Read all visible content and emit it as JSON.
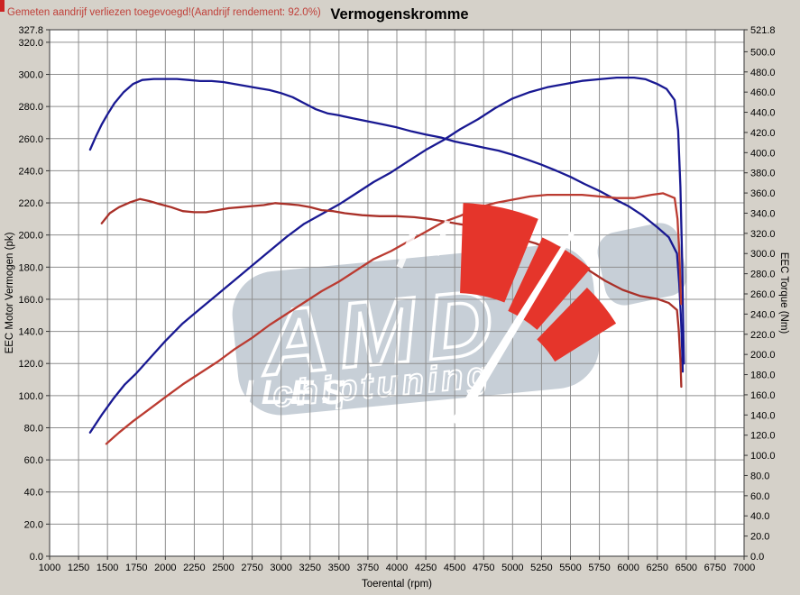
{
  "header": {
    "note": "Gemeten aandrijf verliezen toegevoegd!(Aandrijf rendement: 92.0%)",
    "title": "Vermogenskromme"
  },
  "watermark": {
    "line1": "AMD",
    "line2": "chiptuning",
    "line3": "FILES"
  },
  "colors": {
    "background": "#d5d1c9",
    "plot_background": "#ffffff",
    "grid": "#8f8f8f",
    "border": "#555555",
    "note_red": "#c0403a",
    "title_black": "#000000",
    "tuned_blue": "#191992",
    "original_red": "#b43430",
    "watermark_gray": "#c7cfd7",
    "watermark_red": "#e5352b"
  },
  "chart_data": {
    "type": "line",
    "title": "Vermogenskromme",
    "xlabel": "Toerental (rpm)",
    "ylabel_left": "EEC Motor Vermogen (pk)",
    "ylabel_right": "EEC Torque (Nm)",
    "xlim": [
      1000,
      7000
    ],
    "ylim_left": [
      0,
      327.8
    ],
    "ylim_right": [
      0,
      521.8
    ],
    "grid": true,
    "legend": "none",
    "x_ticks": [
      "1000",
      "1250",
      "1500",
      "1750",
      "2000",
      "2250",
      "2500",
      "2750",
      "3000",
      "3250",
      "3500",
      "3750",
      "4000",
      "4250",
      "4500",
      "4750",
      "5000",
      "5250",
      "5500",
      "5750",
      "6000",
      "6250",
      "6500",
      "6750",
      "7000"
    ],
    "y_ticks_left": [
      "0.0",
      "20.0",
      "40.0",
      "60.0",
      "80.0",
      "100.0",
      "120.0",
      "140.0",
      "160.0",
      "180.0",
      "200.0",
      "220.0",
      "240.0",
      "260.0",
      "280.0",
      "300.0",
      "320.0",
      "327.8"
    ],
    "y_ticks_right": [
      "0.0",
      "20.0",
      "40.0",
      "60.0",
      "80.0",
      "100.0",
      "120.0",
      "140.0",
      "160.0",
      "180.0",
      "200.0",
      "220.0",
      "240.0",
      "260.0",
      "280.0",
      "300.0",
      "320.0",
      "340.0",
      "360.0",
      "380.0",
      "400.0",
      "420.0",
      "440.0",
      "460.0",
      "480.0",
      "500.0",
      "521.8"
    ],
    "series": [
      {
        "name": "tuned_power_pk",
        "axis": "left",
        "color": "#191992",
        "peak": 298,
        "points": [
          [
            1350,
            77
          ],
          [
            1450,
            88
          ],
          [
            1550,
            98
          ],
          [
            1650,
            107
          ],
          [
            1750,
            114
          ],
          [
            1850,
            122
          ],
          [
            2000,
            134
          ],
          [
            2150,
            145
          ],
          [
            2300,
            154
          ],
          [
            2450,
            163
          ],
          [
            2600,
            172
          ],
          [
            2750,
            181
          ],
          [
            2900,
            190
          ],
          [
            3050,
            199
          ],
          [
            3200,
            207
          ],
          [
            3350,
            213
          ],
          [
            3500,
            219
          ],
          [
            3650,
            226
          ],
          [
            3800,
            233
          ],
          [
            3950,
            239
          ],
          [
            4100,
            246
          ],
          [
            4250,
            253
          ],
          [
            4400,
            259
          ],
          [
            4550,
            266
          ],
          [
            4700,
            272
          ],
          [
            4850,
            279
          ],
          [
            5000,
            285
          ],
          [
            5150,
            289
          ],
          [
            5300,
            292
          ],
          [
            5450,
            294
          ],
          [
            5600,
            296
          ],
          [
            5750,
            297
          ],
          [
            5900,
            298
          ],
          [
            6050,
            298
          ],
          [
            6150,
            297
          ],
          [
            6250,
            294
          ],
          [
            6330,
            291
          ],
          [
            6400,
            284
          ],
          [
            6430,
            265
          ],
          [
            6450,
            230
          ],
          [
            6465,
            185
          ],
          [
            6475,
            142
          ],
          [
            6480,
            120
          ]
        ]
      },
      {
        "name": "tuned_torque_nm",
        "axis": "right",
        "color": "#191992",
        "peak": 473,
        "points": [
          [
            1350,
            403
          ],
          [
            1400,
            416
          ],
          [
            1450,
            428
          ],
          [
            1500,
            438
          ],
          [
            1560,
            449
          ],
          [
            1640,
            460
          ],
          [
            1720,
            468
          ],
          [
            1800,
            472
          ],
          [
            1900,
            473
          ],
          [
            2000,
            473
          ],
          [
            2100,
            473
          ],
          [
            2200,
            472
          ],
          [
            2300,
            471
          ],
          [
            2400,
            471
          ],
          [
            2500,
            470
          ],
          [
            2600,
            468
          ],
          [
            2700,
            466
          ],
          [
            2800,
            464
          ],
          [
            2900,
            462
          ],
          [
            3000,
            459
          ],
          [
            3100,
            455
          ],
          [
            3200,
            449
          ],
          [
            3300,
            443
          ],
          [
            3400,
            439
          ],
          [
            3500,
            437
          ],
          [
            3620,
            434
          ],
          [
            3750,
            431
          ],
          [
            3880,
            428
          ],
          [
            4000,
            425
          ],
          [
            4130,
            421
          ],
          [
            4250,
            418
          ],
          [
            4380,
            415
          ],
          [
            4500,
            411
          ],
          [
            4630,
            408
          ],
          [
            4750,
            405
          ],
          [
            4880,
            402
          ],
          [
            5000,
            398
          ],
          [
            5130,
            393
          ],
          [
            5250,
            388
          ],
          [
            5380,
            382
          ],
          [
            5500,
            376
          ],
          [
            5620,
            369
          ],
          [
            5750,
            362
          ],
          [
            5880,
            354
          ],
          [
            6000,
            347
          ],
          [
            6120,
            338
          ],
          [
            6250,
            326
          ],
          [
            6350,
            316
          ],
          [
            6420,
            300
          ],
          [
            6440,
            270
          ],
          [
            6455,
            235
          ],
          [
            6465,
            205
          ],
          [
            6470,
            183
          ]
        ]
      },
      {
        "name": "original_power_pk",
        "axis": "left",
        "color": "#bb3b31",
        "peak": 226,
        "points": [
          [
            1490,
            70
          ],
          [
            1600,
            77
          ],
          [
            1720,
            84
          ],
          [
            1850,
            91
          ],
          [
            2000,
            99
          ],
          [
            2150,
            107
          ],
          [
            2300,
            114
          ],
          [
            2450,
            121
          ],
          [
            2600,
            129
          ],
          [
            2750,
            136
          ],
          [
            2900,
            144
          ],
          [
            3050,
            151
          ],
          [
            3200,
            158
          ],
          [
            3350,
            165
          ],
          [
            3500,
            171
          ],
          [
            3650,
            178
          ],
          [
            3800,
            185
          ],
          [
            3950,
            190
          ],
          [
            4100,
            196
          ],
          [
            4250,
            202
          ],
          [
            4400,
            208
          ],
          [
            4550,
            212
          ],
          [
            4700,
            217
          ],
          [
            4850,
            220
          ],
          [
            5000,
            222
          ],
          [
            5150,
            224
          ],
          [
            5300,
            225
          ],
          [
            5450,
            225
          ],
          [
            5600,
            225
          ],
          [
            5750,
            224
          ],
          [
            5900,
            223
          ],
          [
            6050,
            223
          ],
          [
            6200,
            225
          ],
          [
            6300,
            226
          ],
          [
            6400,
            223
          ],
          [
            6425,
            210
          ],
          [
            6440,
            190
          ],
          [
            6450,
            170
          ],
          [
            6455,
            157
          ]
        ]
      },
      {
        "name": "original_torque_nm",
        "axis": "right",
        "color": "#a93028",
        "peak": 354,
        "points": [
          [
            1450,
            330
          ],
          [
            1520,
            340
          ],
          [
            1600,
            346
          ],
          [
            1700,
            351
          ],
          [
            1780,
            354
          ],
          [
            1860,
            352
          ],
          [
            1950,
            349
          ],
          [
            2050,
            346
          ],
          [
            2150,
            342
          ],
          [
            2250,
            341
          ],
          [
            2350,
            341
          ],
          [
            2450,
            343
          ],
          [
            2550,
            345
          ],
          [
            2650,
            346
          ],
          [
            2750,
            347
          ],
          [
            2850,
            348
          ],
          [
            2950,
            350
          ],
          [
            3050,
            349
          ],
          [
            3150,
            348
          ],
          [
            3250,
            346
          ],
          [
            3350,
            343
          ],
          [
            3450,
            342
          ],
          [
            3550,
            340
          ],
          [
            3700,
            338
          ],
          [
            3850,
            337
          ],
          [
            4000,
            337
          ],
          [
            4150,
            336
          ],
          [
            4300,
            334
          ],
          [
            4450,
            331
          ],
          [
            4600,
            328
          ],
          [
            4750,
            323
          ],
          [
            4900,
            319
          ],
          [
            5050,
            315
          ],
          [
            5200,
            310
          ],
          [
            5350,
            303
          ],
          [
            5500,
            294
          ],
          [
            5650,
            284
          ],
          [
            5800,
            273
          ],
          [
            5950,
            264
          ],
          [
            6100,
            258
          ],
          [
            6250,
            255
          ],
          [
            6350,
            251
          ],
          [
            6420,
            244
          ],
          [
            6435,
            225
          ],
          [
            6450,
            195
          ],
          [
            6458,
            168
          ]
        ]
      }
    ]
  }
}
